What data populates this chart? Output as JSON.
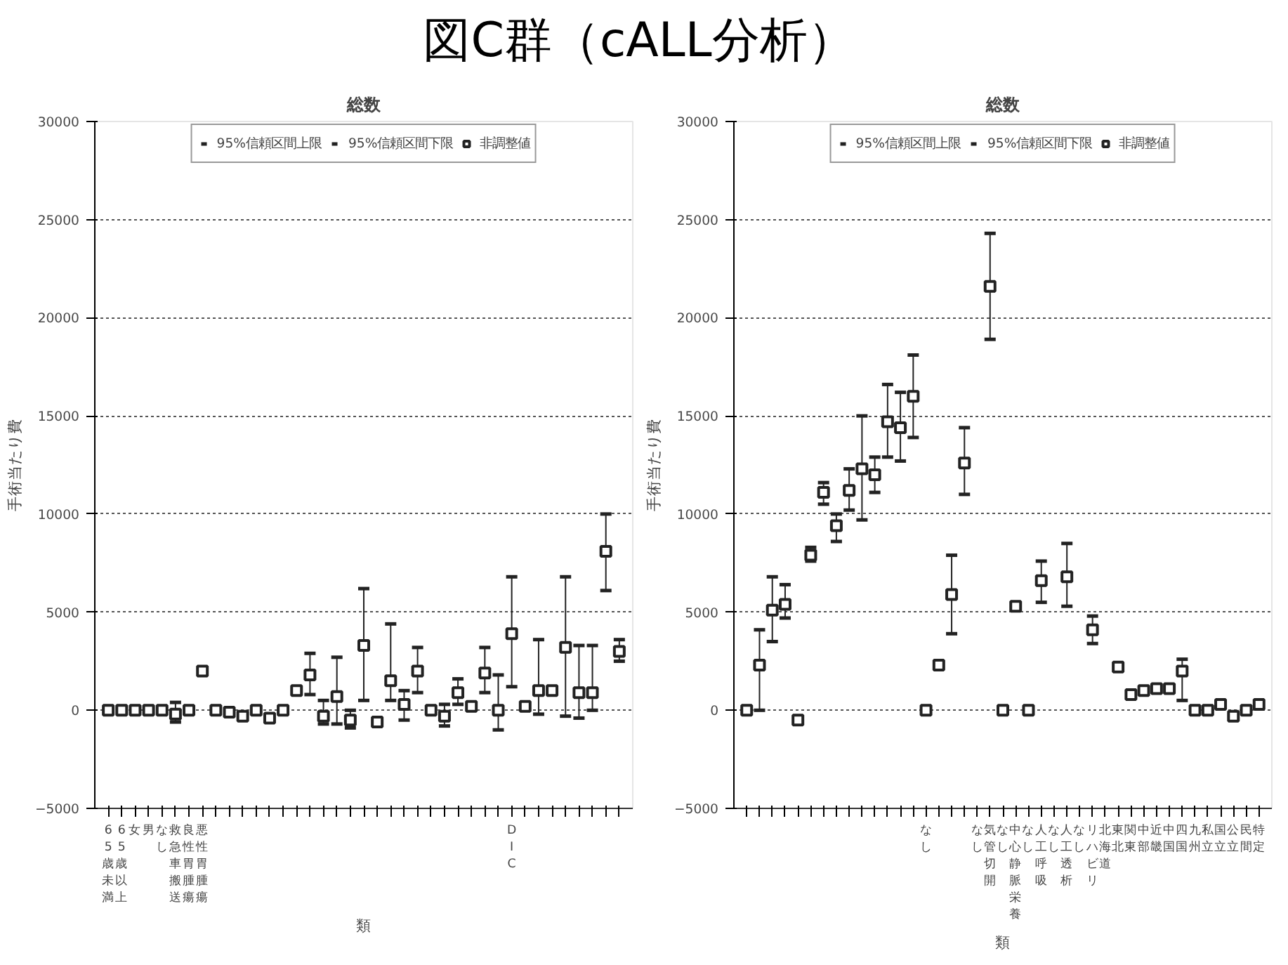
{
  "chart_data": [
    {
      "type": "scatter",
      "title": "図C群（cALL分析）",
      "subtitle": "総数",
      "xlabel": "類",
      "ylabel": "手術当たり費",
      "annotations": [
        "95%信頼区間上限",
        "95%信頼区間下限"
      ],
      "categories": [
        "65歳未満",
        "65歳以上",
        "女",
        "男",
        "なし",
        "救急車搬送",
        "良性胃腫瘍",
        "悪性胃腫瘍",
        null,
        null,
        null,
        null,
        null,
        null,
        null,
        null,
        null,
        null,
        null,
        null,
        null,
        null,
        null,
        null,
        null,
        null,
        null,
        null,
        null,
        null,
        "DIC",
        null,
        null,
        null,
        null,
        null,
        null,
        null,
        null
      ],
      "series": [
        {
          "name": "非調整値",
          "color": "#222222",
          "values": [
            0,
            0,
            0,
            0,
            0,
            -200,
            0,
            2000,
            0,
            -100,
            -300,
            0,
            -400,
            0,
            1000,
            1800,
            -300,
            700,
            -500,
            3300,
            -600,
            1500,
            300,
            2000,
            0,
            -300,
            900,
            200,
            1900,
            0,
            3900,
            200,
            1000,
            1000,
            3200,
            900,
            900,
            8100,
            3000
          ],
          "errors": [
            null,
            null,
            null,
            null,
            null,
            [
              -600,
              400
            ],
            null,
            null,
            null,
            null,
            null,
            null,
            null,
            null,
            null,
            [
              800,
              2900
            ],
            [
              -700,
              500
            ],
            [
              -700,
              2700
            ],
            [
              -900,
              0
            ],
            [
              500,
              6200
            ],
            null,
            [
              500,
              4400
            ],
            [
              -500,
              1000
            ],
            [
              900,
              3200
            ],
            null,
            [
              -800,
              300
            ],
            [
              300,
              1600
            ],
            null,
            [
              900,
              3200
            ],
            [
              -1000,
              1800
            ],
            [
              1200,
              6800
            ],
            null,
            [
              -200,
              3600
            ],
            null,
            [
              -300,
              6800
            ],
            [
              -400,
              3300
            ],
            [
              0,
              3300
            ],
            [
              6100,
              10000
            ],
            [
              2500,
              3600
            ]
          ]
        }
      ],
      "marker": "square",
      "ylim": [
        -5000,
        30000
      ],
      "yticks": [
        -5000,
        0,
        5000,
        10000,
        15000,
        20000,
        25000,
        30000
      ],
      "grid": "y",
      "legend": "top"
    },
    {
      "type": "scatter",
      "subtitle": "総数",
      "xlabel": "類",
      "ylabel": "手術当たり費",
      "annotations": [
        "95%信頼区間上限",
        "95%信頼区間下限"
      ],
      "categories": [
        null,
        null,
        null,
        null,
        null,
        null,
        null,
        null,
        null,
        null,
        null,
        null,
        null,
        null,
        "なし",
        null,
        null,
        null,
        "なし",
        "気管切開",
        "なし",
        "中心静脈栄養",
        "なし",
        "人工呼吸",
        "なし",
        "人工透析",
        "なし",
        "リハビリ",
        "北海道",
        "東北",
        "関東",
        "中部",
        "近畿",
        "中国",
        "四国",
        "九州",
        "私立",
        "国立",
        "公立",
        "民間",
        "特定"
      ],
      "series": [
        {
          "name": "非調整値",
          "color": "#222222",
          "values": [
            0,
            2300,
            5100,
            5400,
            -500,
            7900,
            11100,
            9400,
            11200,
            12300,
            12000,
            14700,
            14400,
            16000,
            0,
            2300,
            5900,
            12600,
            null,
            21600,
            0,
            5300,
            0,
            6600,
            null,
            6800,
            null,
            4100,
            null,
            2200,
            800,
            1000,
            1100,
            1100,
            2000,
            0,
            0,
            300,
            -300,
            0,
            300
          ],
          "errors": [
            null,
            [
              0,
              4100
            ],
            [
              3500,
              6800
            ],
            [
              4700,
              6400
            ],
            null,
            [
              7600,
              8300
            ],
            [
              10500,
              11600
            ],
            [
              8600,
              10000
            ],
            [
              10200,
              12300
            ],
            [
              9700,
              15000
            ],
            [
              11100,
              12900
            ],
            [
              12900,
              16600
            ],
            [
              12700,
              16200
            ],
            [
              13900,
              18100
            ],
            null,
            null,
            [
              3900,
              7900
            ],
            [
              11000,
              14400
            ],
            null,
            [
              18900,
              24300
            ],
            null,
            null,
            null,
            [
              5500,
              7600
            ],
            null,
            [
              5300,
              8500
            ],
            null,
            [
              3400,
              4800
            ],
            null,
            null,
            null,
            null,
            null,
            null,
            [
              500,
              2600
            ],
            null,
            null,
            null,
            null,
            null,
            null
          ]
        }
      ],
      "marker": "square",
      "ylim": [
        -5000,
        30000
      ],
      "yticks": [
        -5000,
        0,
        5000,
        10000,
        15000,
        20000,
        25000,
        30000
      ],
      "grid": "y",
      "legend": "top"
    }
  ]
}
